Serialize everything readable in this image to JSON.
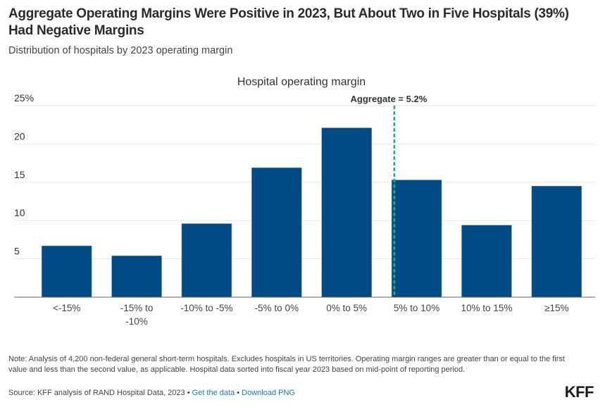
{
  "header": {
    "title": "Aggregate Operating Margins Were Positive in 2023, But About Two in Five Hospitals (39%) Had Negative Margins",
    "subtitle": "Distribution of hospitals by 2023 operating margin"
  },
  "chart_data": {
    "type": "bar",
    "title": "Hospital operating margin",
    "xlabel": "",
    "ylabel": "",
    "categories": [
      "<-15%",
      "-15% to -10%",
      "-10% to -5%",
      "-5% to 0%",
      "0% to 5%",
      "5% to 10%",
      "10% to 15%",
      "≥15%"
    ],
    "category_lines": [
      [
        "<-15%"
      ],
      [
        "-15% to",
        "-10%"
      ],
      [
        "-10% to -5%"
      ],
      [
        "-5% to 0%"
      ],
      [
        "0% to 5%"
      ],
      [
        "5% to 10%"
      ],
      [
        "10% to 15%"
      ],
      [
        "≥15%"
      ]
    ],
    "values": [
      6.7,
      5.4,
      9.6,
      16.9,
      22.1,
      15.3,
      9.4,
      14.5
    ],
    "ylim": [
      0,
      25
    ],
    "yticks": [
      5,
      10,
      15,
      20,
      25
    ],
    "ytick_labels": [
      "5",
      "10",
      "15",
      "20",
      "25%"
    ],
    "grid": true,
    "bar_color": "#004a86",
    "annotation": {
      "label": "Aggregate = 5.2%",
      "value": 5.2,
      "category_index": 5,
      "line_color": "#1fb37a",
      "line_style": "dashed"
    }
  },
  "footer": {
    "note": "Note: Analysis of 4,200 non-federal general short-term hospitals. Excludes hospitals in US territories. Operating margin ranges are greater than or equal to the first value and less than the second value, as applicable. Hospital data sorted into fiscal year 2023 based on mid-point of reporting period.",
    "source_prefix": "Source: KFF analysis of RAND Hospital Data, 2023 • ",
    "get_data_label": "Get the data",
    "separator": " • ",
    "download_label": "Download PNG",
    "logo": "KFF"
  }
}
